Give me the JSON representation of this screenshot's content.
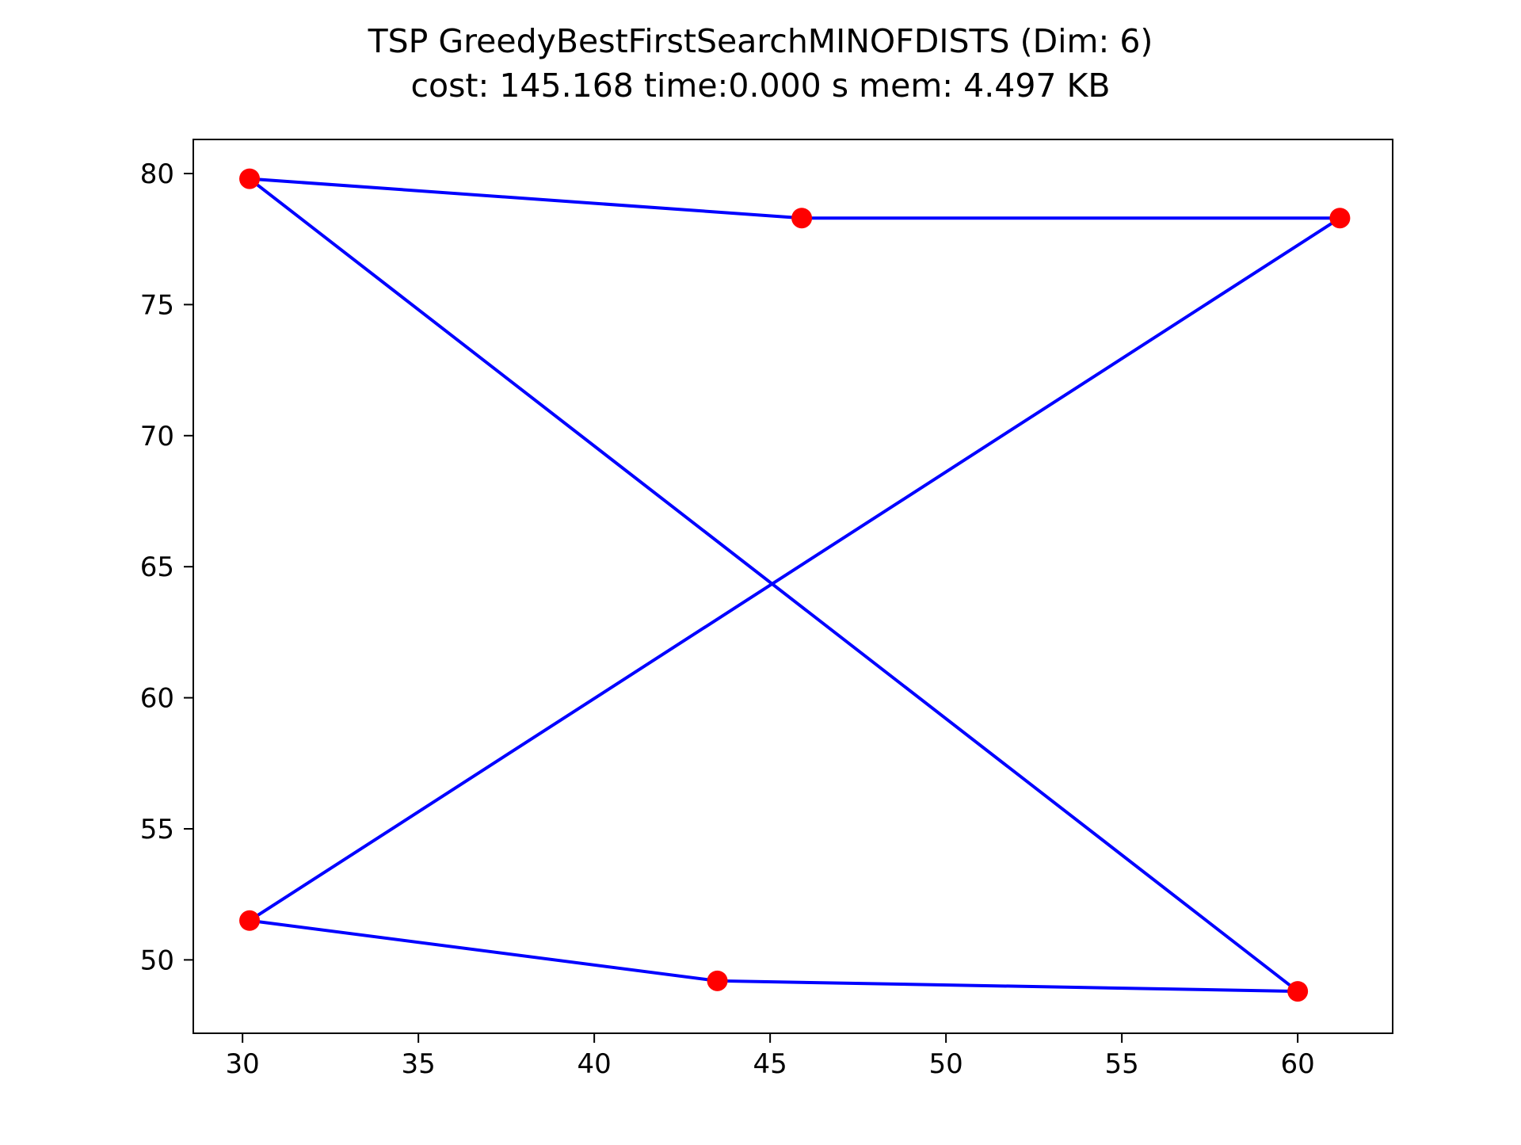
{
  "chart_data": {
    "type": "scatter",
    "title_lines": [
      "TSP GreedyBestFirstSearchMINOFDISTS (Dim: 6)",
      "cost: 145.168   time:0.000 s   mem: 4.497 KB"
    ],
    "xlabel": "",
    "ylabel": "",
    "xlim": [
      28.6,
      62.7
    ],
    "ylim": [
      47.2,
      81.3
    ],
    "xticks": [
      30,
      35,
      40,
      45,
      50,
      55,
      60
    ],
    "yticks": [
      50,
      55,
      60,
      65,
      70,
      75,
      80
    ],
    "grid": false,
    "points": [
      {
        "x": 30.2,
        "y": 79.8
      },
      {
        "x": 45.9,
        "y": 78.3
      },
      {
        "x": 61.2,
        "y": 78.3
      },
      {
        "x": 30.2,
        "y": 51.5
      },
      {
        "x": 43.5,
        "y": 49.2
      },
      {
        "x": 60.0,
        "y": 48.8
      }
    ],
    "route": [
      {
        "x": 30.2,
        "y": 79.8
      },
      {
        "x": 45.9,
        "y": 78.3
      },
      {
        "x": 61.2,
        "y": 78.3
      },
      {
        "x": 30.2,
        "y": 51.5
      },
      {
        "x": 43.5,
        "y": 49.2
      },
      {
        "x": 60.0,
        "y": 48.8
      },
      {
        "x": 30.2,
        "y": 79.8
      }
    ],
    "colors": {
      "points": "#ff0000",
      "route": "#0000ff",
      "axes": "#000000"
    }
  }
}
